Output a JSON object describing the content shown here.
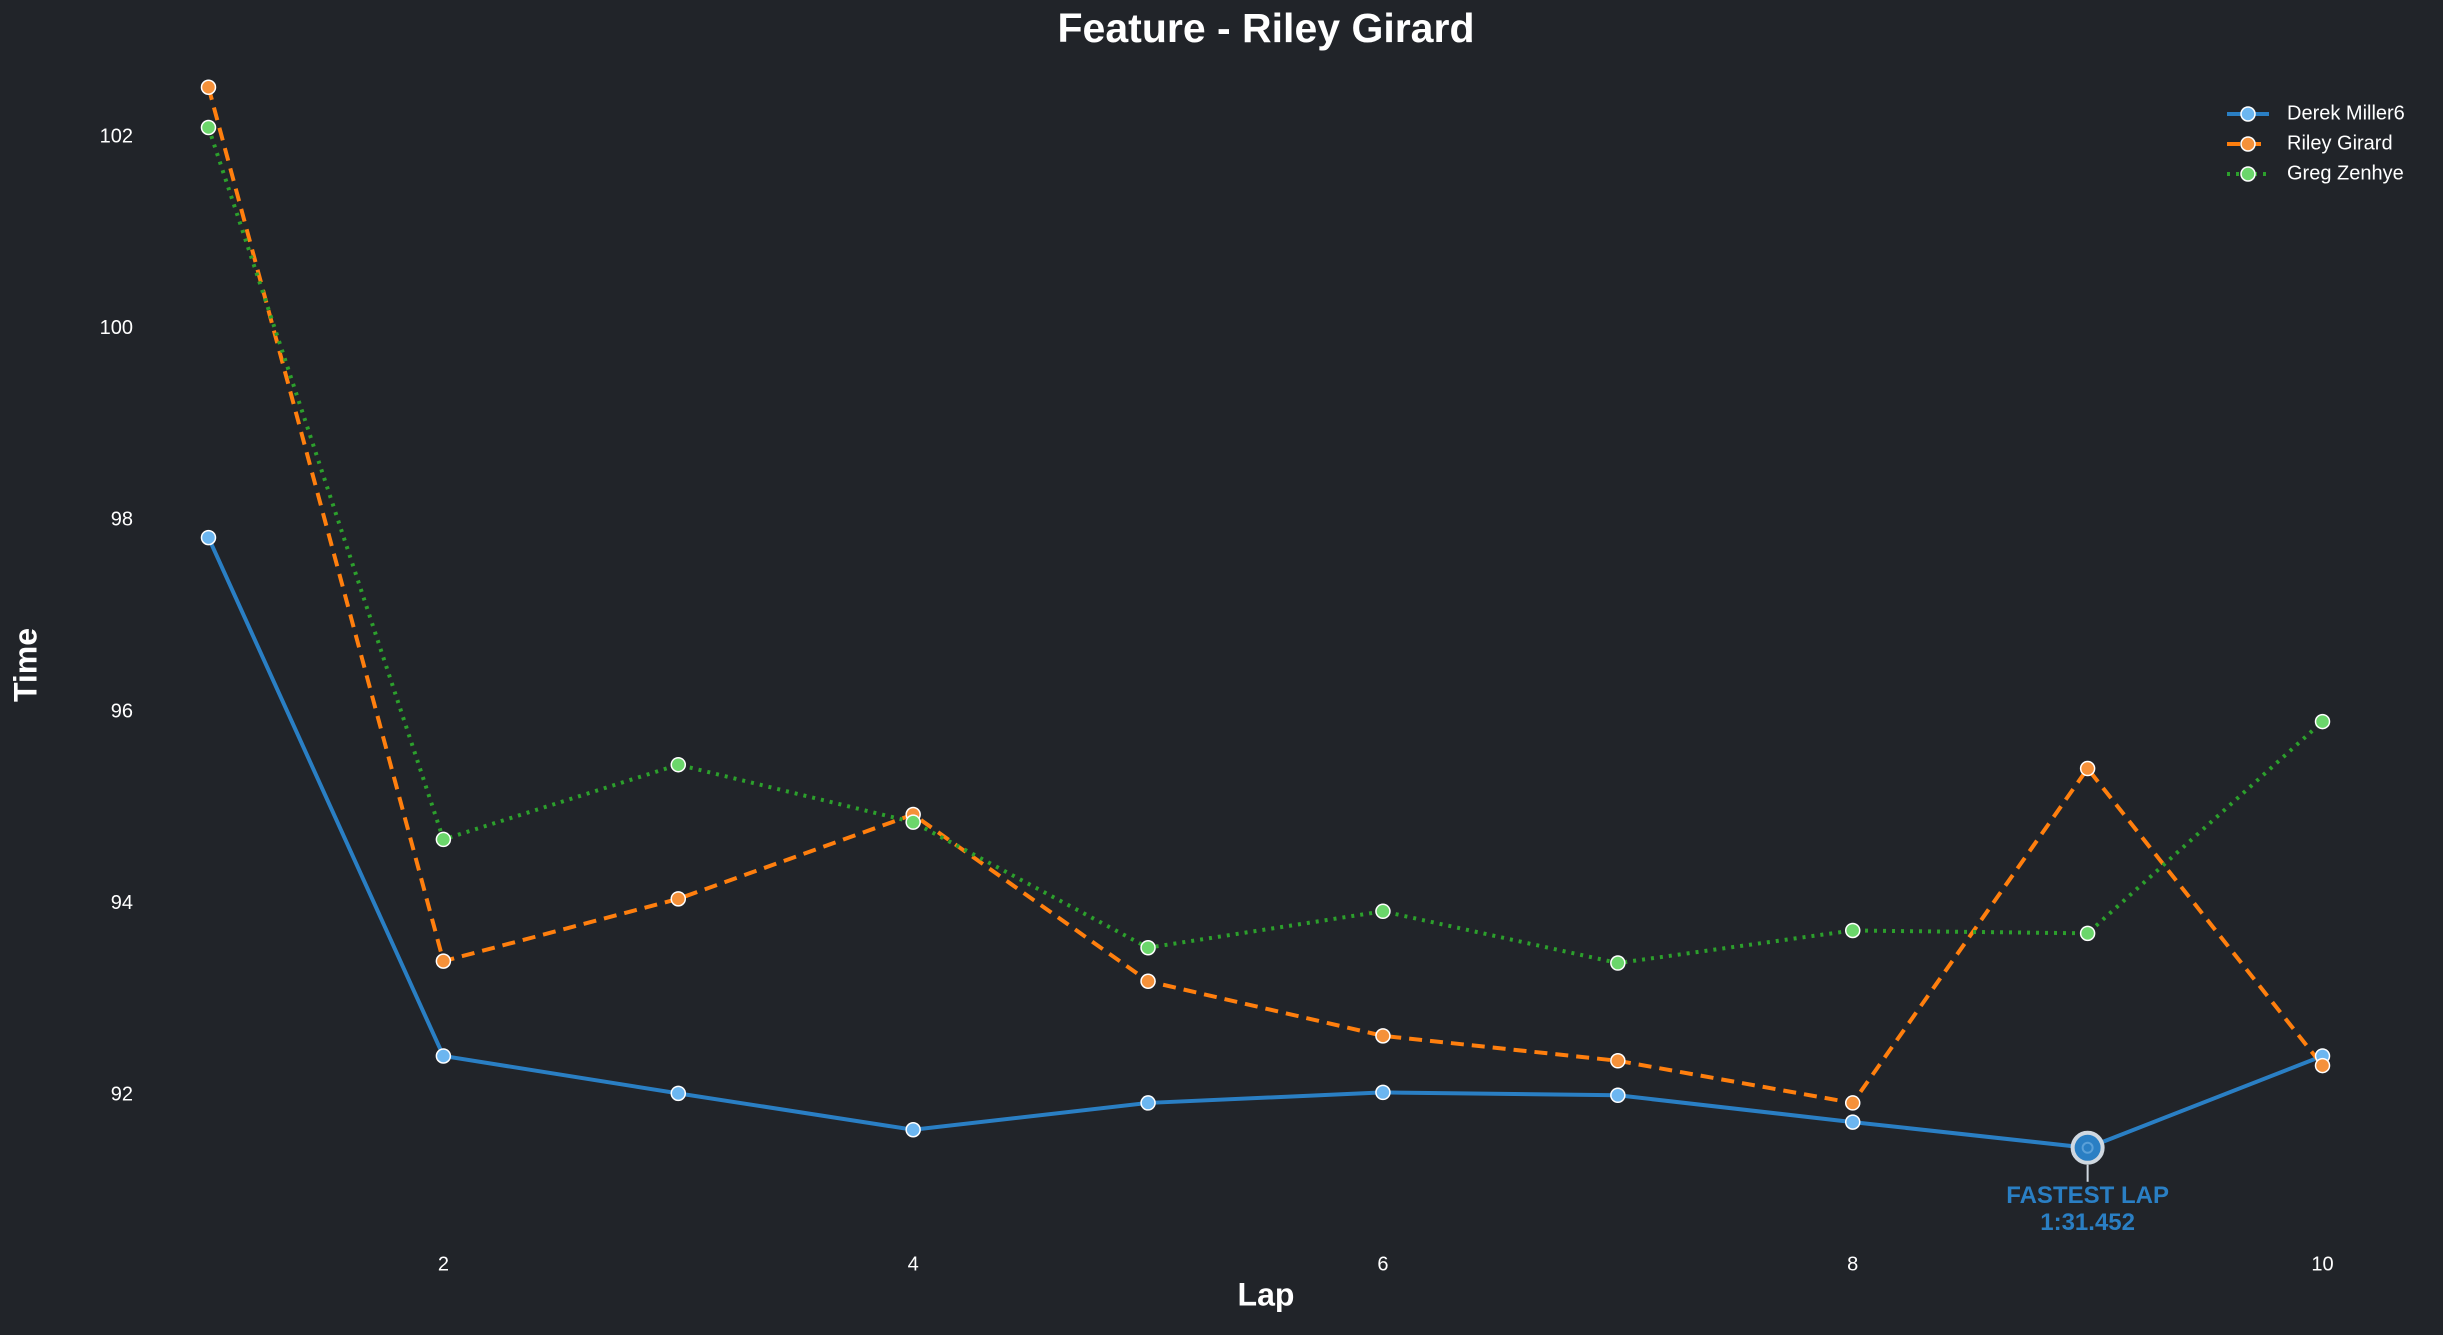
{
  "chart_data": {
    "type": "line",
    "title": "Feature - Riley Girard",
    "x_label": "Lap",
    "y_label": "Time",
    "x": [
      1,
      2,
      3,
      4,
      5,
      6,
      7,
      8,
      9,
      10
    ],
    "series": [
      {
        "name": "Derek Miller6",
        "color": "#2a7fc4",
        "marker_color": "#6cb6f0",
        "dash": "solid",
        "values": [
          97.82,
          92.41,
          92.02,
          91.64,
          91.92,
          92.03,
          92.0,
          91.72,
          91.452,
          92.41
        ]
      },
      {
        "name": "Riley Girard",
        "color": "#ff7f0e",
        "marker_color": "#f5913a",
        "dash": "dashed",
        "values": [
          102.52,
          93.4,
          94.05,
          94.93,
          93.19,
          92.62,
          92.36,
          91.92,
          95.41,
          92.31
        ]
      },
      {
        "name": "Greg Zenhye",
        "color": "#2ca02c",
        "marker_color": "#6bd66b",
        "dash": "dotted",
        "values": [
          102.1,
          94.67,
          95.45,
          94.85,
          93.54,
          93.92,
          93.38,
          93.72,
          93.69,
          95.9
        ]
      }
    ],
    "xlim": [
      0.9,
      10.1
    ],
    "ylim": [
      90.5,
      102.7
    ],
    "xticks": [
      2,
      4,
      6,
      8,
      10
    ],
    "yticks": [
      92,
      94,
      96,
      98,
      100,
      102
    ],
    "grid": false,
    "legend": "upper right",
    "annotation": {
      "lines": [
        "FASTEST LAP",
        "1:31.452"
      ],
      "x": 9,
      "y": 91.452,
      "color": "#2a7fc4"
    }
  }
}
